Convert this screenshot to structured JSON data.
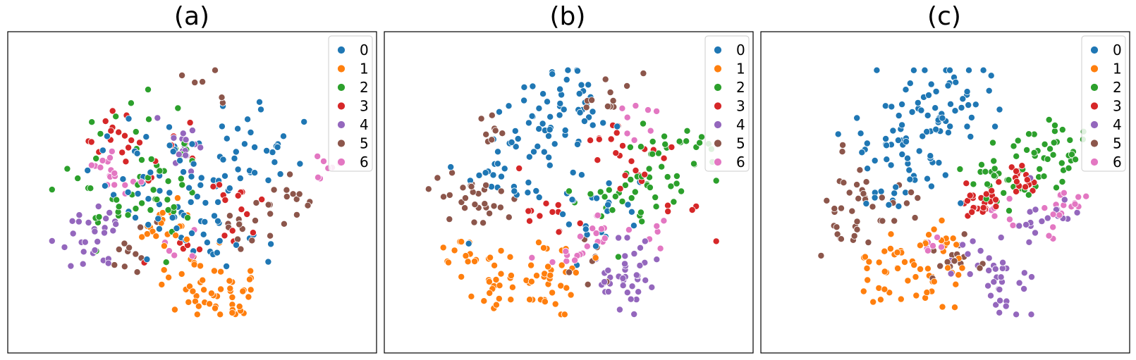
{
  "chart_data": [
    {
      "type": "scatter",
      "title": "(a)",
      "legend": {
        "placement": "top-right",
        "entries": [
          "0",
          "1",
          "2",
          "3",
          "4",
          "5",
          "6"
        ]
      },
      "grid": false,
      "ticks": false,
      "clusters": [
        {
          "name": "0",
          "centers": [
            [
              0.68,
              0.34
            ],
            [
              0.58,
              0.4
            ],
            [
              0.55,
              0.65
            ],
            [
              0.45,
              0.5
            ],
            [
              0.35,
              0.45
            ]
          ],
          "spread": 0.07,
          "count": 110
        },
        {
          "name": "1",
          "centers": [
            [
              0.55,
              0.8
            ],
            [
              0.5,
              0.74
            ],
            [
              0.62,
              0.84
            ],
            [
              0.43,
              0.62
            ]
          ],
          "spread": 0.045,
          "count": 70
        },
        {
          "name": "2",
          "centers": [
            [
              0.4,
              0.45
            ],
            [
              0.33,
              0.28
            ],
            [
              0.45,
              0.55
            ],
            [
              0.28,
              0.55
            ]
          ],
          "spread": 0.06,
          "count": 60
        },
        {
          "name": "3",
          "centers": [
            [
              0.4,
              0.38
            ],
            [
              0.5,
              0.7
            ],
            [
              0.3,
              0.33
            ],
            [
              0.6,
              0.55
            ]
          ],
          "spread": 0.05,
          "count": 45
        },
        {
          "name": "4",
          "centers": [
            [
              0.22,
              0.66
            ],
            [
              0.27,
              0.6
            ],
            [
              0.48,
              0.36
            ]
          ],
          "spread": 0.04,
          "count": 45
        },
        {
          "name": "5",
          "centers": [
            [
              0.72,
              0.55
            ],
            [
              0.78,
              0.52
            ],
            [
              0.53,
              0.16
            ],
            [
              0.35,
              0.67
            ],
            [
              0.63,
              0.62
            ]
          ],
          "spread": 0.035,
          "count": 45
        },
        {
          "name": "6",
          "centers": [
            [
              0.27,
              0.44
            ],
            [
              0.45,
              0.67
            ],
            [
              0.88,
              0.41
            ],
            [
              0.32,
              0.49
            ]
          ],
          "spread": 0.03,
          "count": 30
        }
      ]
    },
    {
      "type": "scatter",
      "title": "(b)",
      "legend": {
        "placement": "top-right",
        "entries": [
          "0",
          "1",
          "2",
          "3",
          "4",
          "5",
          "6"
        ]
      },
      "grid": false,
      "ticks": false,
      "clusters": [
        {
          "name": "0",
          "centers": [
            [
              0.45,
              0.28
            ],
            [
              0.4,
              0.33
            ],
            [
              0.52,
              0.22
            ],
            [
              0.35,
              0.5
            ],
            [
              0.6,
              0.55
            ]
          ],
          "spread": 0.07,
          "count": 110
        },
        {
          "name": "1",
          "centers": [
            [
              0.3,
              0.78
            ],
            [
              0.42,
              0.8
            ],
            [
              0.25,
              0.7
            ],
            [
              0.5,
              0.7
            ]
          ],
          "spread": 0.05,
          "count": 70
        },
        {
          "name": "2",
          "centers": [
            [
              0.75,
              0.4
            ],
            [
              0.58,
              0.55
            ],
            [
              0.72,
              0.5
            ],
            [
              0.85,
              0.35
            ]
          ],
          "spread": 0.05,
          "count": 60
        },
        {
          "name": "3",
          "centers": [
            [
              0.7,
              0.42
            ],
            [
              0.62,
              0.35
            ],
            [
              0.45,
              0.57
            ],
            [
              0.8,
              0.55
            ]
          ],
          "spread": 0.05,
          "count": 40
        },
        {
          "name": "4",
          "centers": [
            [
              0.68,
              0.82
            ],
            [
              0.62,
              0.74
            ],
            [
              0.7,
              0.7
            ]
          ],
          "spread": 0.04,
          "count": 40
        },
        {
          "name": "5",
          "centers": [
            [
              0.2,
              0.48
            ],
            [
              0.28,
              0.55
            ],
            [
              0.6,
              0.2
            ],
            [
              0.3,
              0.3
            ],
            [
              0.55,
              0.72
            ]
          ],
          "spread": 0.04,
          "count": 55
        },
        {
          "name": "6",
          "centers": [
            [
              0.72,
              0.62
            ],
            [
              0.5,
              0.68
            ],
            [
              0.7,
              0.28
            ],
            [
              0.57,
              0.62
            ]
          ],
          "spread": 0.035,
          "count": 35
        }
      ]
    },
    {
      "type": "scatter",
      "title": "(c)",
      "legend": {
        "placement": "top-right",
        "entries": [
          "0",
          "1",
          "2",
          "3",
          "4",
          "5",
          "6"
        ]
      },
      "grid": false,
      "ticks": false,
      "clusters": [
        {
          "name": "0",
          "centers": [
            [
              0.45,
              0.25
            ],
            [
              0.35,
              0.33
            ],
            [
              0.52,
              0.2
            ],
            [
              0.4,
              0.42
            ]
          ],
          "spread": 0.07,
          "count": 105
        },
        {
          "name": "1",
          "centers": [
            [
              0.33,
              0.77
            ],
            [
              0.45,
              0.78
            ],
            [
              0.5,
              0.63
            ],
            [
              0.38,
              0.7
            ]
          ],
          "spread": 0.045,
          "count": 60
        },
        {
          "name": "2",
          "centers": [
            [
              0.75,
              0.38
            ],
            [
              0.6,
              0.45
            ],
            [
              0.7,
              0.5
            ],
            [
              0.82,
              0.38
            ]
          ],
          "spread": 0.05,
          "count": 65
        },
        {
          "name": "3",
          "centers": [
            [
              0.6,
              0.54
            ],
            [
              0.63,
              0.52
            ],
            [
              0.7,
              0.45
            ]
          ],
          "spread": 0.025,
          "count": 45
        },
        {
          "name": "4",
          "centers": [
            [
              0.65,
              0.76
            ],
            [
              0.57,
              0.7
            ],
            [
              0.75,
              0.6
            ],
            [
              0.8,
              0.57
            ],
            [
              0.68,
              0.82
            ]
          ],
          "spread": 0.04,
          "count": 55
        },
        {
          "name": "5",
          "centers": [
            [
              0.22,
              0.47
            ],
            [
              0.28,
              0.55
            ],
            [
              0.35,
              0.5
            ],
            [
              0.22,
              0.62
            ],
            [
              0.52,
              0.7
            ]
          ],
          "spread": 0.04,
          "count": 55
        },
        {
          "name": "6",
          "centers": [
            [
              0.78,
              0.6
            ],
            [
              0.45,
              0.67
            ],
            [
              0.82,
              0.52
            ],
            [
              0.65,
              0.58
            ]
          ],
          "spread": 0.03,
          "count": 30
        }
      ]
    }
  ],
  "colors": {
    "0": "#1f77b4",
    "1": "#ff7f0e",
    "2": "#2ca02c",
    "3": "#d62728",
    "4": "#9467bd",
    "5": "#8c564b",
    "6": "#e377c2"
  }
}
